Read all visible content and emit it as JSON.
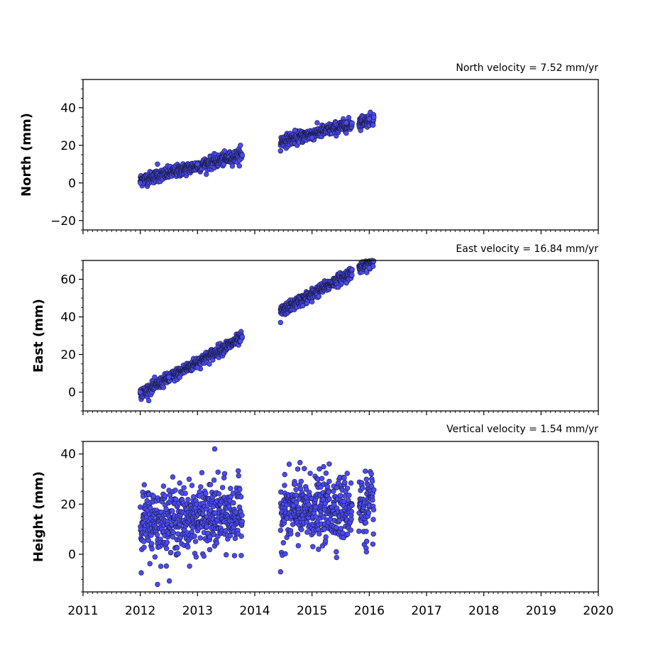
{
  "chart_data": [
    {
      "type": "scatter",
      "velocity_label": "North velocity = 7.52 mm/yr",
      "ylabel": "North (mm)",
      "xlim": [
        2011,
        2020
      ],
      "ylim": [
        -25,
        55
      ],
      "yticks": [
        -20,
        0,
        20,
        40
      ],
      "ytick_labels": [
        "−20",
        "0",
        "20",
        "40"
      ],
      "marker_color": "#4b4bf5",
      "trend": {
        "slope_mm_per_yr": 7.52,
        "intercept_at_2012": 1.5
      },
      "segments": [
        [
          2012.0,
          2013.78
        ],
        [
          2014.45,
          2015.7
        ],
        [
          2015.82,
          2016.08
        ]
      ],
      "scatter_mm": 1.6,
      "sample": [
        {
          "x": 2012.0,
          "y": 0
        },
        {
          "x": 2012.3,
          "y": 10
        },
        {
          "x": 2013.0,
          "y": 10
        },
        {
          "x": 2013.75,
          "y": 20
        },
        {
          "x": 2014.45,
          "y": 17
        },
        {
          "x": 2014.7,
          "y": 28
        },
        {
          "x": 2015.0,
          "y": 24
        },
        {
          "x": 2015.6,
          "y": 32
        },
        {
          "x": 2016.0,
          "y": 34
        }
      ]
    },
    {
      "type": "scatter",
      "velocity_label": "East velocity = 16.84 mm/yr",
      "ylabel": "East (mm)",
      "xlim": [
        2011,
        2020
      ],
      "ylim": [
        -10,
        70
      ],
      "yticks": [
        0,
        20,
        40,
        60
      ],
      "ytick_labels": [
        "0",
        "20",
        "40",
        "60"
      ],
      "marker_color": "#4b4bf5",
      "trend": {
        "slope_mm_per_yr": 16.84,
        "intercept_at_2012": -1.0
      },
      "segments": [
        [
          2012.0,
          2013.78
        ],
        [
          2014.45,
          2015.7
        ],
        [
          2015.82,
          2016.08
        ]
      ],
      "scatter_mm": 1.5,
      "sample": [
        {
          "x": 2012.0,
          "y": 0
        },
        {
          "x": 2012.5,
          "y": 8
        },
        {
          "x": 2013.0,
          "y": 13
        },
        {
          "x": 2013.75,
          "y": 27
        },
        {
          "x": 2014.45,
          "y": 37
        },
        {
          "x": 2015.0,
          "y": 48
        },
        {
          "x": 2015.6,
          "y": 58
        },
        {
          "x": 2016.0,
          "y": 66
        }
      ]
    },
    {
      "type": "scatter",
      "velocity_label": "Vertical velocity = 1.54 mm/yr",
      "ylabel": "Height (mm)",
      "xlim": [
        2011,
        2020
      ],
      "ylim": [
        -15,
        45
      ],
      "yticks": [
        0,
        20,
        40
      ],
      "ytick_labels": [
        "0",
        "20",
        "40"
      ],
      "xticks": [
        2011,
        2012,
        2013,
        2014,
        2015,
        2016,
        2017,
        2018,
        2019,
        2020
      ],
      "xtick_labels": [
        "2011",
        "2012",
        "2013",
        "2014",
        "2015",
        "2016",
        "2017",
        "2018",
        "2019",
        "2020"
      ],
      "marker_color": "#4b4bf5",
      "trend": {
        "slope_mm_per_yr": 1.54,
        "intercept_at_2012": 13.0
      },
      "segments": [
        [
          2012.0,
          2013.78
        ],
        [
          2014.45,
          2015.7
        ],
        [
          2015.82,
          2016.08
        ]
      ],
      "scatter_mm": 6.5,
      "sample": [
        {
          "x": 2012.3,
          "y": -12
        },
        {
          "x": 2013.3,
          "y": 42
        },
        {
          "x": 2014.45,
          "y": -7
        },
        {
          "x": 2014.75,
          "y": 34
        },
        {
          "x": 2015.3,
          "y": 36
        },
        {
          "x": 2015.95,
          "y": 1
        }
      ]
    }
  ]
}
